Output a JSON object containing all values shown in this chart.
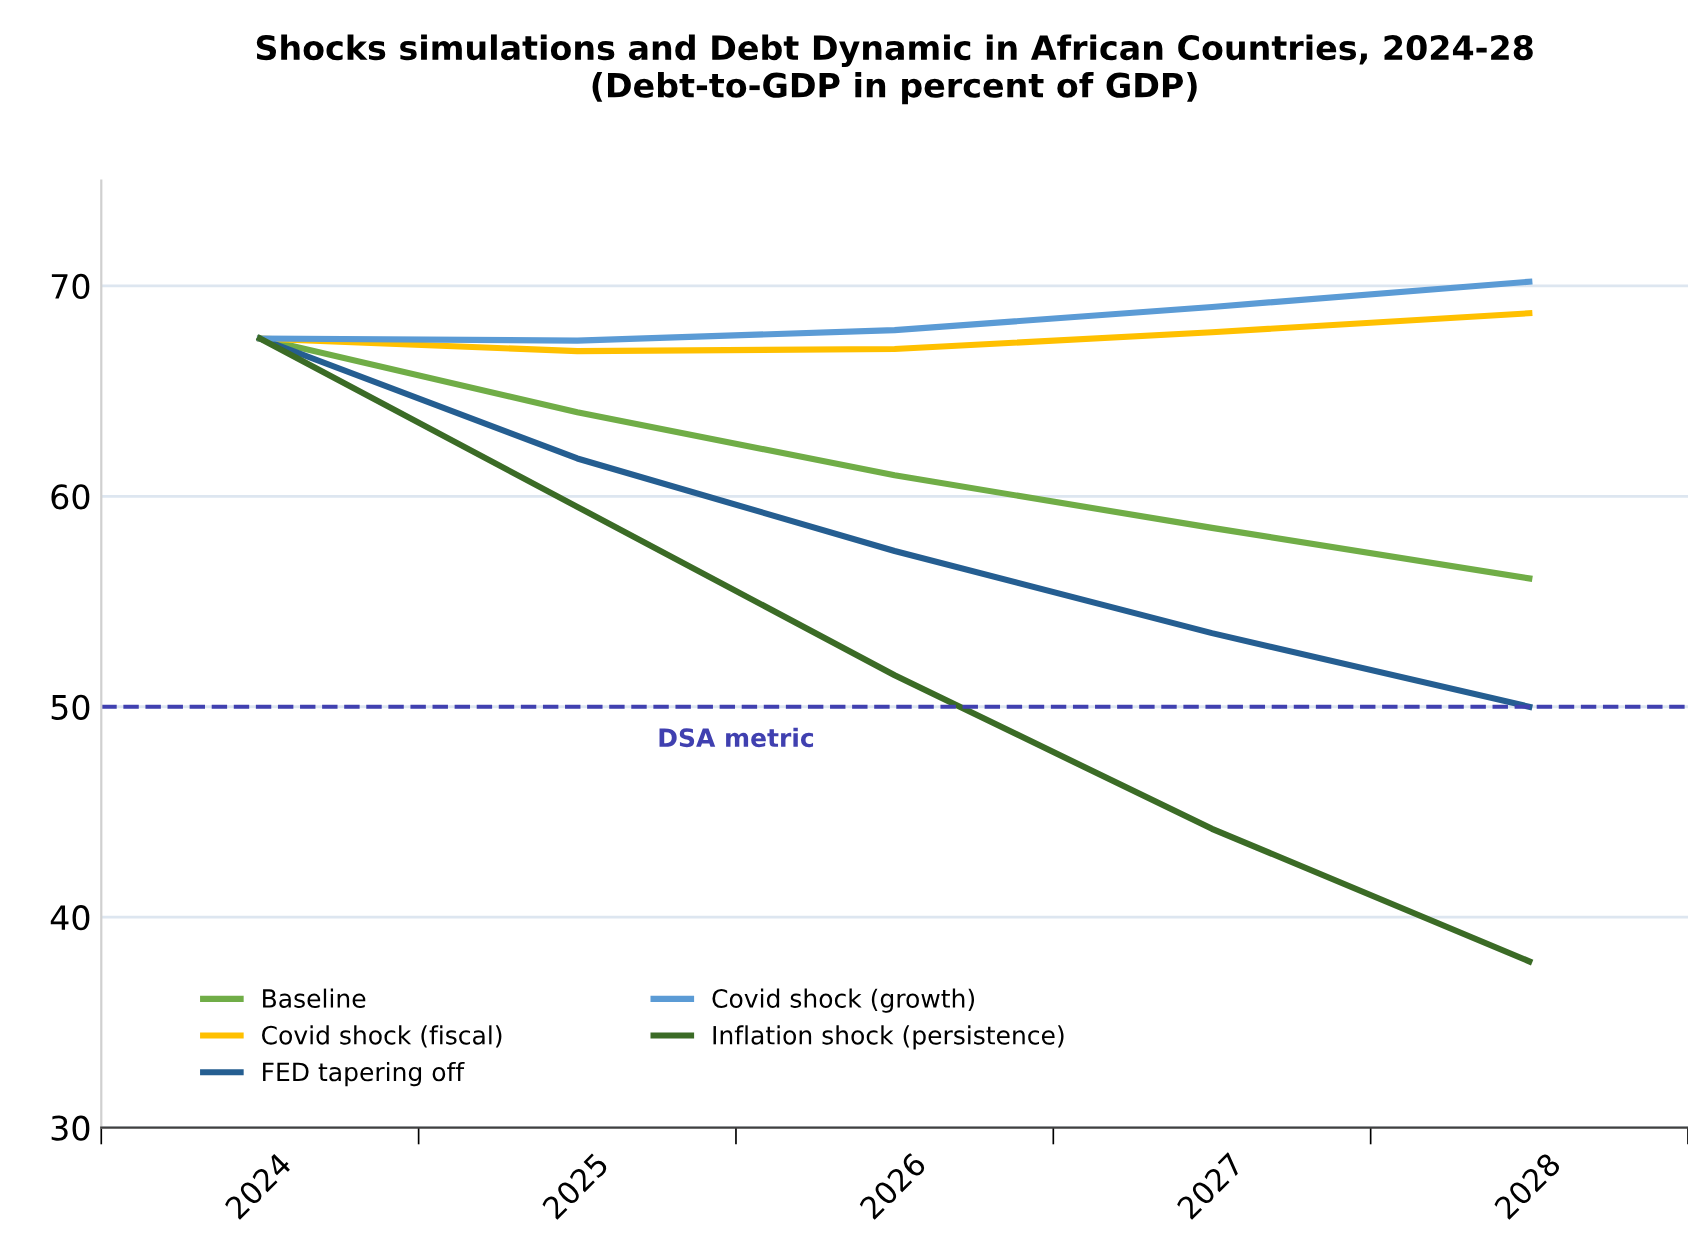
{
  "chart_data": {
    "type": "line",
    "title": "Shocks simulations and Debt Dynamic in African Countries, 2024-28\n(Debt-to-GDP in percent of GDP)",
    "categories": [
      "2024",
      "2025",
      "2026",
      "2027",
      "2028"
    ],
    "series": [
      {
        "name": "Baseline",
        "color": "#70ad47",
        "values": [
          67.5,
          64.0,
          61.0,
          58.5,
          56.1
        ]
      },
      {
        "name": "Covid shock (fiscal)",
        "color": "#ffc000",
        "values": [
          67.5,
          66.9,
          67.0,
          67.8,
          68.7
        ]
      },
      {
        "name": "FED tapering off",
        "color": "#255e91",
        "values": [
          67.5,
          61.8,
          57.4,
          53.5,
          50.0
        ]
      },
      {
        "name": "Covid shock (growth)",
        "color": "#5b9bd5",
        "values": [
          67.5,
          67.4,
          67.9,
          69.0,
          70.2
        ]
      },
      {
        "name": "Inflation shock (persistence)",
        "color": "#3b6b26",
        "values": [
          67.5,
          59.5,
          51.5,
          44.2,
          37.9
        ]
      }
    ],
    "ylim": [
      30,
      75
    ],
    "yticks": [
      30,
      40,
      50,
      60,
      70
    ],
    "ref_lines": [
      {
        "axis": "y",
        "value": 50,
        "label": "DSA metric",
        "color": "#4040b0",
        "line_style": "dashed"
      }
    ],
    "grid": "y",
    "legend": "bottom left",
    "marker": "none",
    "line_style": "solid"
  }
}
